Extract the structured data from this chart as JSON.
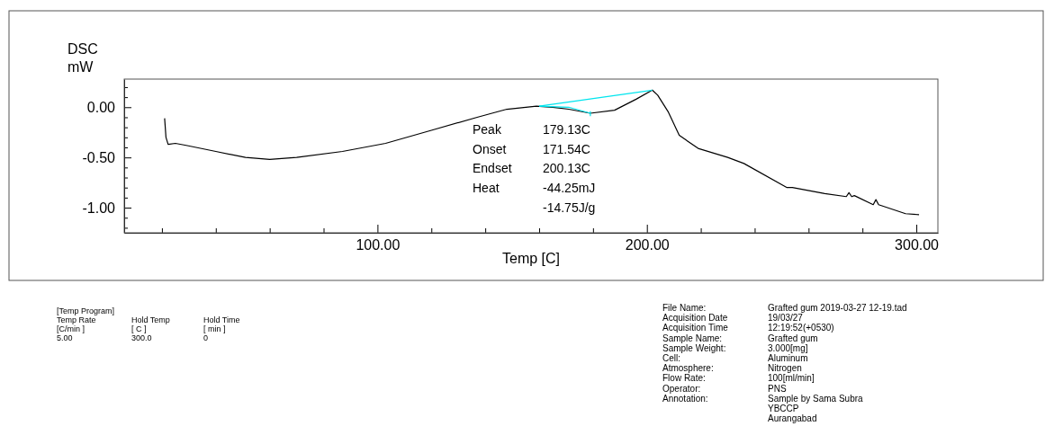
{
  "chart_data": {
    "type": "line",
    "xlabel": "Temp [C]",
    "ylabel": "DSC mW",
    "xlim": [
      6,
      308
    ],
    "ylim": [
      -1.25,
      0.28
    ],
    "xticks": [
      {
        "value": 20,
        "label": null
      },
      {
        "value": 40,
        "label": null
      },
      {
        "value": 60,
        "label": null
      },
      {
        "value": 80,
        "label": null
      },
      {
        "value": 100,
        "label": "100.00"
      },
      {
        "value": 120,
        "label": null
      },
      {
        "value": 140,
        "label": null
      },
      {
        "value": 160,
        "label": null
      },
      {
        "value": 180,
        "label": null
      },
      {
        "value": 200,
        "label": "200.00"
      },
      {
        "value": 220,
        "label": null
      },
      {
        "value": 240,
        "label": null
      },
      {
        "value": 260,
        "label": null
      },
      {
        "value": 280,
        "label": null
      },
      {
        "value": 300,
        "label": "300.00"
      }
    ],
    "yticks": [
      {
        "value": -1.2,
        "label": null
      },
      {
        "value": -1.1,
        "label": null
      },
      {
        "value": -1,
        "label": "-1.00"
      },
      {
        "value": -0.9,
        "label": null
      },
      {
        "value": -0.8,
        "label": null
      },
      {
        "value": -0.7,
        "label": null
      },
      {
        "value": -0.6,
        "label": null
      },
      {
        "value": -0.5,
        "label": "-0.50"
      },
      {
        "value": -0.4,
        "label": null
      },
      {
        "value": -0.3,
        "label": null
      },
      {
        "value": -0.2,
        "label": null
      },
      {
        "value": -0.1,
        "label": null
      },
      {
        "value": 0,
        "label": "0.00"
      },
      {
        "value": 0.1,
        "label": null
      },
      {
        "value": 0.2,
        "label": null
      }
    ],
    "grid": false,
    "marker": "none",
    "line_style": "solid",
    "series": [
      {
        "color": "#000000",
        "x": [
          21,
          21.5,
          22.3,
          25,
          29,
          40,
          51,
          60,
          70,
          87,
          103,
          120,
          137,
          148,
          159,
          165,
          171,
          179,
          188,
          196,
          202,
          204,
          208,
          212,
          219,
          230,
          236,
          252,
          254,
          266,
          274,
          275,
          276,
          277,
          284,
          285,
          286,
          296,
          301
        ],
        "values": [
          -0.11,
          -0.3,
          -0.37,
          -0.36,
          -0.38,
          -0.44,
          -0.5,
          -0.52,
          -0.5,
          -0.44,
          -0.36,
          -0.23,
          -0.1,
          -0.02,
          0.01,
          0,
          -0.02,
          -0.06,
          -0.03,
          0.08,
          0.17,
          0.12,
          -0.05,
          -0.28,
          -0.41,
          -0.5,
          -0.56,
          -0.8,
          -0.8,
          -0.86,
          -0.89,
          -0.85,
          -0.89,
          -0.88,
          -0.97,
          -0.92,
          -0.97,
          -1.06,
          -1.07
        ]
      },
      {
        "color": "#00e5ee",
        "x": [
          160,
          202
        ],
        "values": [
          0.01,
          0.17
        ]
      },
      {
        "color": "#00e5ee",
        "x": [
          160,
          171,
          179
        ],
        "values": [
          0.01,
          0,
          -0.06
        ]
      },
      {
        "color": "#00e5ee",
        "x": [
          179,
          179
        ],
        "values": [
          -0.04,
          -0.09
        ]
      }
    ],
    "annotations": [
      "Peak",
      "179.13C",
      "Onset",
      "171.54C",
      "Endset",
      "200.13C",
      "Heat",
      "-44.25mJ",
      "-14.75J/g",
      "[Temp Program]",
      "Temp Rate",
      "Hold Temp",
      "Hold Time",
      "[C/min ]",
      "[ C ]",
      "[ min ]",
      "5.00",
      "300.0",
      "0",
      "File Name:",
      "Grafted gum  2019-03-27 12-19.tad",
      "Acquisition Date",
      "19/03/27",
      "Acquisition Time",
      "12:19:52(+0530)",
      "Sample Name:",
      "Grafted gum",
      "Sample Weight:",
      "3.000[mg]",
      "Cell:",
      "Aluminum",
      "Atmosphere:",
      "Nitrogen",
      "Flow Rate:",
      "100[ml/min]",
      "Operator:",
      "PNS",
      "Annotation:",
      "Sample by Sama Subra",
      "YBCCP",
      "Aurangabad"
    ]
  }
}
